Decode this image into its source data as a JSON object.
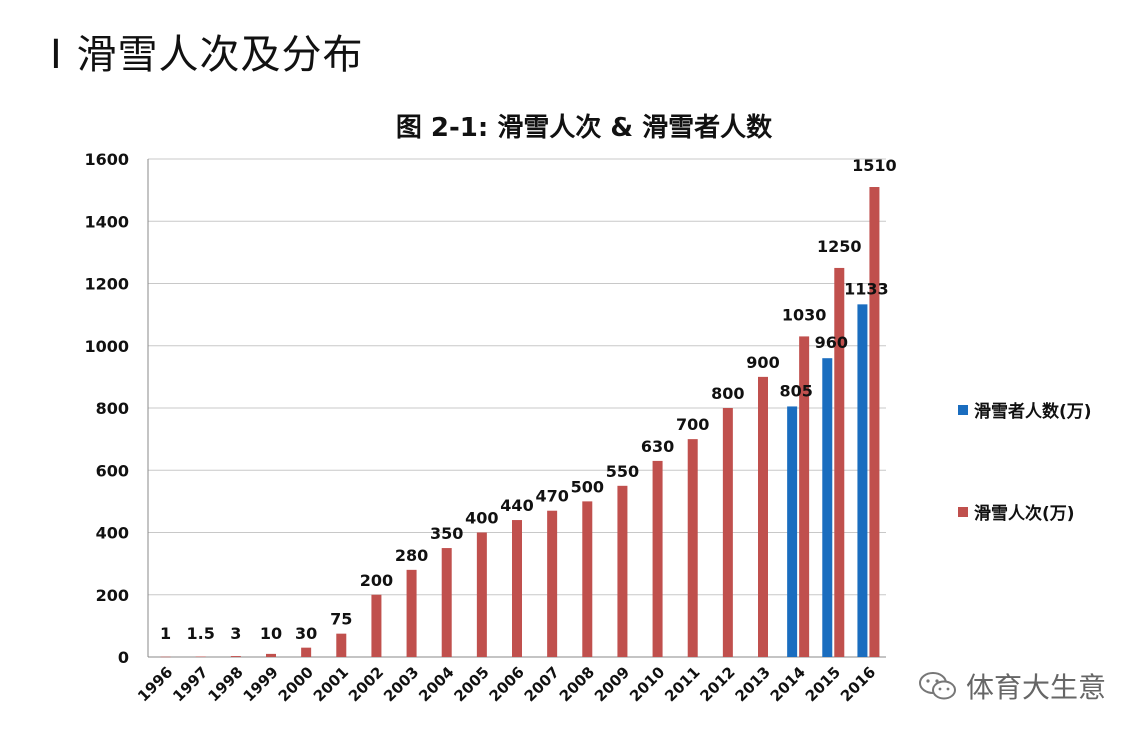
{
  "page": {
    "title": "Ⅰ 滑雪人次及分布"
  },
  "watermark": {
    "text": "体育大生意"
  },
  "colors": {
    "skiers": "#1a6dbf",
    "visits": "#c0504d",
    "grid": "#c8c8c8",
    "axis": "#888888"
  },
  "chart_data": {
    "type": "bar",
    "title": "图 2-1: 滑雪人次 & 滑雪者人数",
    "xlabel": "",
    "ylabel": "",
    "ylim": [
      0,
      1600
    ],
    "yticks": [
      0,
      200,
      400,
      600,
      800,
      1000,
      1200,
      1400,
      1600
    ],
    "categories": [
      "1996",
      "1997",
      "1998",
      "1999",
      "2000",
      "2001",
      "2002",
      "2003",
      "2004",
      "2005",
      "2006",
      "2007",
      "2008",
      "2009",
      "2010",
      "2011",
      "2012",
      "2013",
      "2014",
      "2015",
      "2016"
    ],
    "series": [
      {
        "name": "滑雪者人数(万)",
        "color_key": "skiers",
        "values": [
          null,
          null,
          null,
          null,
          null,
          null,
          null,
          null,
          null,
          null,
          null,
          null,
          null,
          null,
          null,
          null,
          null,
          null,
          805,
          960,
          1133
        ],
        "labels": [
          null,
          null,
          null,
          null,
          null,
          null,
          null,
          null,
          null,
          null,
          null,
          null,
          null,
          null,
          null,
          null,
          null,
          null,
          "805",
          "960",
          "1133"
        ]
      },
      {
        "name": "滑雪人次(万)",
        "color_key": "visits",
        "values": [
          1,
          1.5,
          3,
          10,
          30,
          75,
          200,
          280,
          350,
          400,
          440,
          470,
          500,
          550,
          630,
          700,
          800,
          900,
          1030,
          1250,
          1510
        ],
        "labels": [
          "1",
          "1.5",
          "3",
          "10",
          "30",
          "75",
          "200",
          "280",
          "350",
          "400",
          "440",
          "470",
          "500",
          "550",
          "630",
          "700",
          "800",
          "900",
          "1030",
          "1250",
          "1510"
        ]
      }
    ],
    "legend": "right"
  }
}
